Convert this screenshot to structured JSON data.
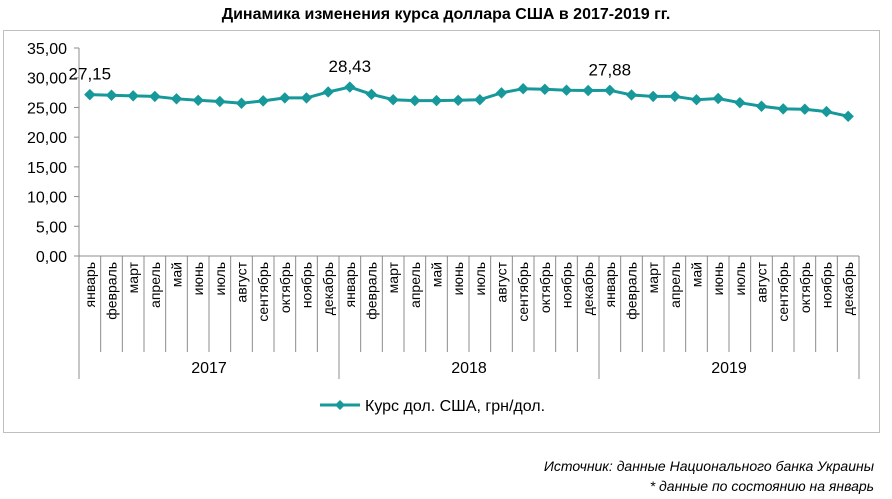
{
  "chart_data": {
    "type": "line",
    "title": "Динамика изменения курса доллара США в 2017-2019 гг.",
    "xlabel": "",
    "ylabel": "",
    "ylim": [
      0,
      35
    ],
    "yticks": [
      "0,00",
      "5,00",
      "10,00",
      "15,00",
      "20,00",
      "25,00",
      "30,00",
      "35,00"
    ],
    "grid": false,
    "legend_position": "bottom",
    "color": "#17989A",
    "months": [
      "январь",
      "февраль",
      "март",
      "апрель",
      "май",
      "июнь",
      "июль",
      "август",
      "сентябрь",
      "октябрь",
      "ноябрь",
      "декабрь"
    ],
    "years": [
      "2017",
      "2018",
      "2019"
    ],
    "series": [
      {
        "name": "Курс дол. США, грн/дол.",
        "values": [
          27.15,
          27.05,
          26.95,
          26.85,
          26.45,
          26.2,
          26.0,
          25.7,
          26.1,
          26.6,
          26.6,
          27.6,
          28.43,
          27.2,
          26.3,
          26.15,
          26.15,
          26.2,
          26.3,
          27.45,
          28.15,
          28.05,
          27.9,
          27.85,
          27.88,
          27.1,
          26.85,
          26.85,
          26.3,
          26.5,
          25.8,
          25.2,
          24.75,
          24.7,
          24.3,
          23.5
        ]
      }
    ],
    "data_labels": [
      {
        "index": 0,
        "text": "27,15"
      },
      {
        "index": 12,
        "text": "28,43"
      },
      {
        "index": 24,
        "text": "27,88"
      }
    ]
  },
  "footer": {
    "source": "Источник: данные Национального банка Украины",
    "note": "* данные по состоянию на январь"
  }
}
